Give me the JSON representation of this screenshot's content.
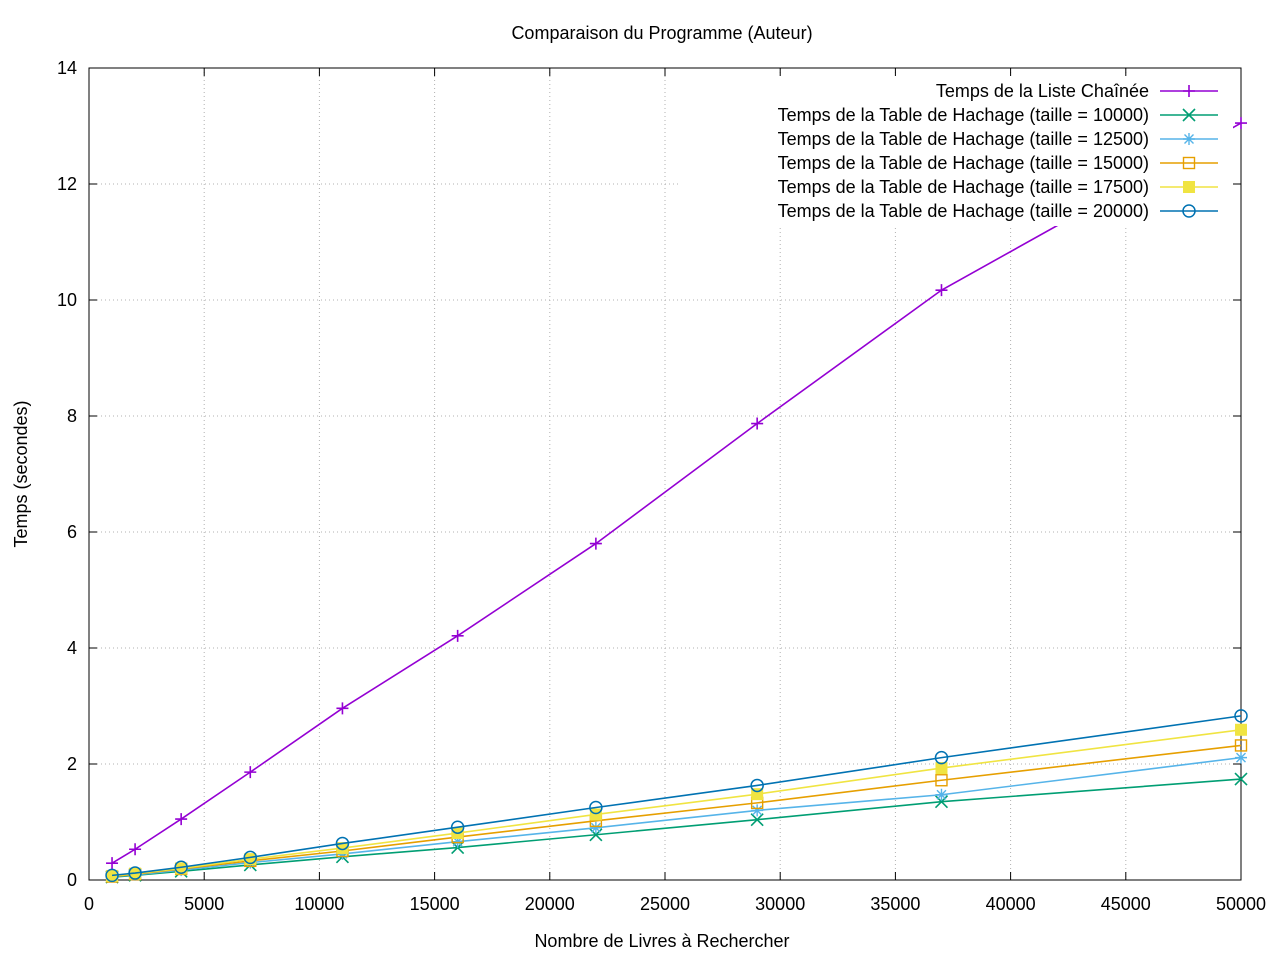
{
  "chart_data": {
    "type": "line",
    "title": "Comparaison du Programme (Auteur)",
    "xlabel": "Nombre de Livres à Rechercher",
    "ylabel": "Temps (secondes)",
    "xlim": [
      0,
      50000
    ],
    "ylim": [
      0,
      14
    ],
    "xticks": [
      0,
      5000,
      10000,
      15000,
      20000,
      25000,
      30000,
      35000,
      40000,
      45000,
      50000
    ],
    "yticks": [
      0,
      2,
      4,
      6,
      8,
      10,
      12,
      14
    ],
    "grid": true,
    "legend_position": "top-right",
    "x": [
      1000,
      2000,
      4000,
      7000,
      11000,
      16000,
      22000,
      29000,
      37000,
      50000
    ],
    "series": [
      {
        "name": "Temps de la  Liste Chaînée",
        "marker": "plus",
        "color": "#9400d3",
        "values": [
          0.29,
          0.53,
          1.05,
          1.86,
          2.96,
          4.21,
          5.8,
          7.87,
          10.17,
          13.05
        ]
      },
      {
        "name": "Temps de la Table de Hachage (taille = 10000)",
        "marker": "cross",
        "color": "#009e73",
        "values": [
          0.05,
          0.08,
          0.15,
          0.26,
          0.4,
          0.56,
          0.78,
          1.04,
          1.35,
          1.74
        ]
      },
      {
        "name": "Temps de la Table de Hachage (taille = 12500)",
        "marker": "star",
        "color": "#56b4e9",
        "values": [
          0.06,
          0.09,
          0.17,
          0.3,
          0.45,
          0.66,
          0.9,
          1.2,
          1.47,
          2.11
        ]
      },
      {
        "name": "Temps de la Table de Hachage (taille = 15000)",
        "marker": "square-open",
        "color": "#e69f00",
        "values": [
          0.06,
          0.1,
          0.19,
          0.33,
          0.5,
          0.74,
          1.02,
          1.33,
          1.72,
          2.32
        ]
      },
      {
        "name": "Temps de la Table de Hachage (taille = 17500)",
        "marker": "square-filled",
        "color": "#f0e442",
        "values": [
          0.07,
          0.11,
          0.2,
          0.36,
          0.55,
          0.81,
          1.13,
          1.48,
          1.93,
          2.59
        ]
      },
      {
        "name": "Temps de la Table de Hachage (taille = 20000)",
        "marker": "circle-open",
        "color": "#0072b2",
        "values": [
          0.08,
          0.12,
          0.22,
          0.39,
          0.63,
          0.91,
          1.25,
          1.63,
          2.11,
          2.83
        ]
      }
    ]
  }
}
